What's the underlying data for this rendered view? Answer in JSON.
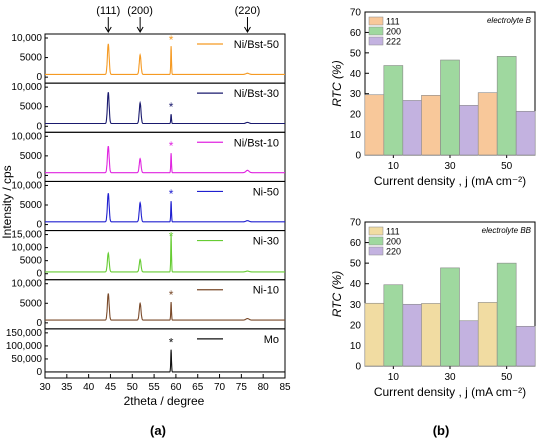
{
  "xrd": {
    "xlabel": "2theta / degree",
    "ylabel": "Intensity / cps",
    "xlim": [
      30,
      85
    ],
    "xticks": [
      "30",
      "35",
      "40",
      "45",
      "50",
      "55",
      "60",
      "65",
      "70",
      "75",
      "80",
      "85"
    ],
    "peak_labels": [
      {
        "text": "(111)",
        "x": 44.5
      },
      {
        "text": "(200)",
        "x": 51.8
      },
      {
        "text": "(220)",
        "x": 76.4
      }
    ],
    "panels": [
      {
        "name": "Ni/Bst-50",
        "color": "#f59a23",
        "ymax": 10000,
        "ytick_labels": [
          "10,000",
          "5000",
          "0"
        ],
        "peaks": [
          [
            44.5,
            7800
          ],
          [
            51.8,
            5000
          ],
          [
            58.9,
            7200
          ],
          [
            76.4,
            300
          ]
        ],
        "star_at": 58.9
      },
      {
        "name": "Ni/Bst-30",
        "color": "#1a1a6e",
        "ymax": 10000,
        "ytick_labels": [
          "10,000",
          "5000",
          "0"
        ],
        "peaks": [
          [
            44.5,
            8000
          ],
          [
            51.8,
            5300
          ],
          [
            58.9,
            2400
          ],
          [
            76.4,
            300
          ]
        ],
        "star_at": 58.9
      },
      {
        "name": "Ni/Bst-10",
        "color": "#e025e0",
        "ymax": 10000,
        "ytick_labels": [
          "10,000",
          "5000",
          "0"
        ],
        "peaks": [
          [
            44.5,
            6800
          ],
          [
            51.8,
            3600
          ],
          [
            58.9,
            5000
          ],
          [
            76.4,
            600
          ]
        ],
        "star_at": 58.9
      },
      {
        "name": "Ni-50",
        "color": "#2020d0",
        "ymax": 10000,
        "ytick_labels": [
          "10,000",
          "5000",
          "0"
        ],
        "peaks": [
          [
            44.5,
            7300
          ],
          [
            51.8,
            4900
          ],
          [
            58.9,
            5300
          ],
          [
            76.4,
            300
          ]
        ],
        "star_at": 58.9
      },
      {
        "name": "Ni-30",
        "color": "#66cc33",
        "ymax": 15000,
        "ytick_labels": [
          "15,000",
          "10,000",
          "5000",
          "0"
        ],
        "peaks": [
          [
            44.5,
            7200
          ],
          [
            51.8,
            4800
          ],
          [
            58.9,
            14000
          ],
          [
            76.4,
            300
          ]
        ],
        "star_at": 58.9
      },
      {
        "name": "Ni-10",
        "color": "#7a4a2a",
        "ymax": 10000,
        "ytick_labels": [
          "10,000",
          "5000",
          "0"
        ],
        "peaks": [
          [
            44.5,
            6800
          ],
          [
            51.8,
            4300
          ],
          [
            58.9,
            4600
          ],
          [
            76.4,
            400
          ]
        ],
        "star_at": 58.9
      },
      {
        "name": "Mo",
        "color": "#111111",
        "ymax": 150000,
        "ytick_labels": [
          "150,000",
          "100,000",
          "50,000",
          "0"
        ],
        "peaks": [
          [
            58.9,
            85000
          ]
        ],
        "star_at": 58.9
      }
    ],
    "panel_label": "(a)"
  },
  "chart_data": [
    {
      "type": "bar",
      "title": "",
      "annotation": "electrolyte B",
      "xlabel": "Current density , j (mA cm⁻²)",
      "ylabel": "RTC (%)",
      "ylim": [
        0,
        70
      ],
      "yticks": [
        0,
        10,
        20,
        30,
        40,
        50,
        60,
        70
      ],
      "categories": [
        "10",
        "30",
        "50"
      ],
      "legend": "top-left",
      "series": [
        {
          "name": "111",
          "color": "#f8c89a",
          "values": [
            29.5,
            29.2,
            30.5
          ]
        },
        {
          "name": "200",
          "color": "#9fd89f",
          "values": [
            43.8,
            46.5,
            48.3
          ]
        },
        {
          "name": "222",
          "color": "#c3b2e0",
          "values": [
            26.7,
            24.3,
            21.4
          ]
        }
      ]
    },
    {
      "type": "bar",
      "title": "",
      "annotation": "electrolyte BB",
      "xlabel": "Current density , j (mA cm⁻²)",
      "ylabel": "RTC (%)",
      "ylim": [
        0,
        70
      ],
      "yticks": [
        0,
        10,
        20,
        30,
        40,
        50,
        60,
        70
      ],
      "categories": [
        "10",
        "30",
        "50"
      ],
      "legend": "top-left",
      "series": [
        {
          "name": "111",
          "color": "#f1dca2",
          "values": [
            30.5,
            30.4,
            30.9
          ]
        },
        {
          "name": "200",
          "color": "#9fd89f",
          "values": [
            39.5,
            47.7,
            50.0
          ]
        },
        {
          "name": "220",
          "color": "#c3b2e0",
          "values": [
            30.0,
            22.0,
            19.3
          ]
        }
      ]
    }
  ],
  "panel_b_label": "(b)"
}
